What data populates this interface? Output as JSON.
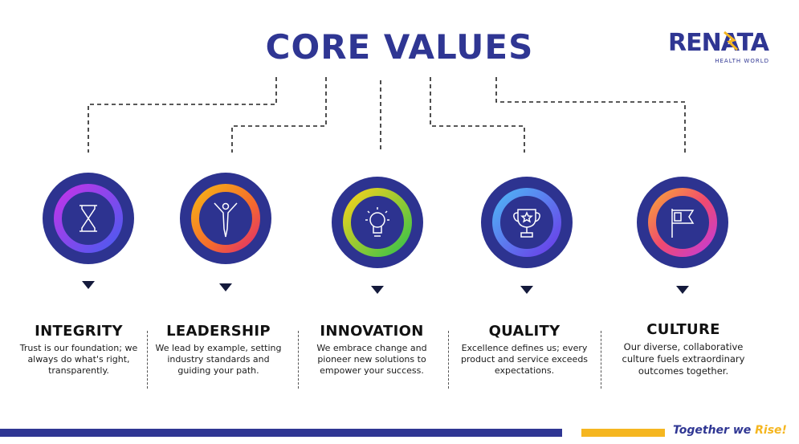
{
  "header": {
    "title": "CORE VALUES"
  },
  "logo": {
    "wordmark": "RENATA",
    "subtitle": "HEALTH WORLD"
  },
  "values": [
    {
      "heading": "INTEGRITY",
      "text": "Trust is our foundation; we always do what's right, transparently.",
      "icon": "hourglass-icon"
    },
    {
      "heading": "LEADERSHIP",
      "text": "We lead by example, setting industry standards and guiding your path.",
      "icon": "leader-figure-icon"
    },
    {
      "heading": "INNOVATION",
      "text": "We embrace change and pioneer new solutions to empower your success.",
      "icon": "lightbulb-icon"
    },
    {
      "heading": "QUALITY",
      "text": "Excellence defines us; every product and service exceeds expectations.",
      "icon": "trophy-star-icon"
    },
    {
      "heading": "CULTURE",
      "text": "Our diverse, collaborative culture fuels extraordinary outcomes together.",
      "icon": "flag-icon"
    }
  ],
  "footer": {
    "tagline_part1": "Together ",
    "tagline_part2": "we ",
    "tagline_part3": "Rise!"
  },
  "colors": {
    "brand_blue": "#2f3693",
    "circle_fill": "#2d3390",
    "accent_gold": "#f5b620"
  }
}
